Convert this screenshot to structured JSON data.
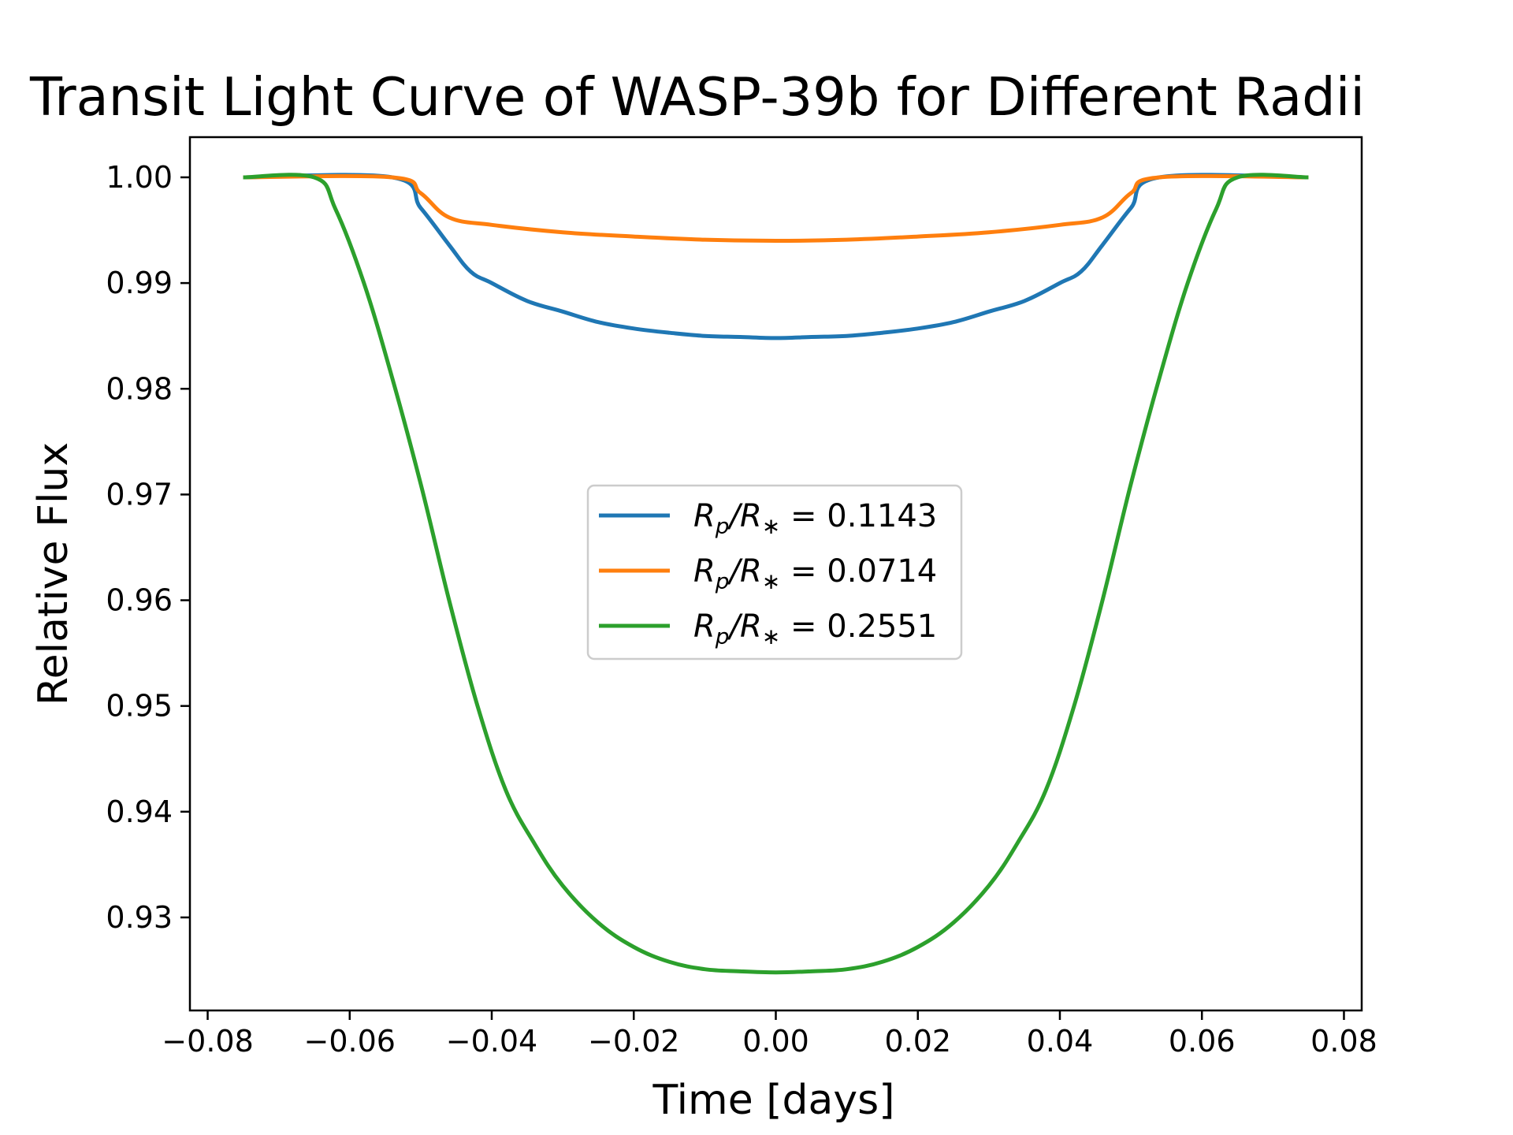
{
  "chart_data": {
    "type": "line",
    "title": "Transit Light Curve of WASP-39b for Different Radii",
    "xlabel": "Time [days]",
    "ylabel": "Relative Flux",
    "xlim": [
      -0.0825,
      0.0825
    ],
    "ylim": [
      0.9212,
      1.0038
    ],
    "xticks": [
      -0.08,
      -0.06,
      -0.04,
      -0.02,
      0.0,
      0.02,
      0.04,
      0.06,
      0.08
    ],
    "xtick_labels": [
      "−0.08",
      "−0.06",
      "−0.04",
      "−0.02",
      "0.00",
      "0.02",
      "0.04",
      "0.06",
      "0.08"
    ],
    "yticks": [
      0.93,
      0.94,
      0.95,
      0.96,
      0.97,
      0.98,
      0.99,
      1.0
    ],
    "ytick_labels": [
      "0.93",
      "0.94",
      "0.95",
      "0.96",
      "0.97",
      "0.98",
      "0.99",
      "1.00"
    ],
    "grid": false,
    "legend_position": "center",
    "series": [
      {
        "name": "R_p/R_* = 0.1143",
        "ratio_value": "0.1143",
        "color": "#1f77b4",
        "x": [
          -0.075,
          -0.054,
          -0.05,
          -0.046,
          -0.043,
          -0.04,
          -0.035,
          -0.03,
          -0.025,
          -0.02,
          -0.015,
          -0.01,
          -0.005,
          0.0,
          0.005,
          0.01,
          0.015,
          0.02,
          0.025,
          0.03,
          0.035,
          0.04,
          0.043,
          0.046,
          0.05,
          0.054,
          0.075
        ],
        "y": [
          1.0,
          1.0,
          0.9971,
          0.9936,
          0.9911,
          0.99,
          0.9883,
          0.9873,
          0.9863,
          0.9857,
          0.9853,
          0.985,
          0.9849,
          0.9848,
          0.9849,
          0.985,
          0.9853,
          0.9857,
          0.9863,
          0.9873,
          0.9883,
          0.99,
          0.9911,
          0.9936,
          0.9971,
          1.0,
          1.0
        ]
      },
      {
        "name": "R_p/R_* = 0.0714",
        "ratio_value": "0.0714",
        "color": "#ff7f0e",
        "x": [
          -0.075,
          -0.054,
          -0.05,
          -0.046,
          -0.04,
          -0.03,
          -0.02,
          -0.01,
          0.0,
          0.01,
          0.02,
          0.03,
          0.04,
          0.046,
          0.05,
          0.054,
          0.075
        ],
        "y": [
          1.0,
          1.0,
          0.9985,
          0.9962,
          0.9955,
          0.9948,
          0.9944,
          0.9941,
          0.994,
          0.9941,
          0.9944,
          0.9948,
          0.9955,
          0.9962,
          0.9985,
          1.0,
          1.0
        ]
      },
      {
        "name": "R_p/R_* = 0.2551",
        "ratio_value": "0.2551",
        "color": "#2ca02c",
        "x": [
          -0.075,
          -0.065,
          -0.062,
          -0.058,
          -0.054,
          -0.05,
          -0.046,
          -0.042,
          -0.038,
          -0.034,
          -0.03,
          -0.025,
          -0.02,
          -0.015,
          -0.01,
          -0.005,
          0.0,
          0.005,
          0.01,
          0.015,
          0.02,
          0.025,
          0.03,
          0.034,
          0.038,
          0.042,
          0.046,
          0.05,
          0.054,
          0.058,
          0.062,
          0.065,
          0.075
        ],
        "y": [
          1.0,
          1.0,
          0.997,
          0.99,
          0.981,
          0.971,
          0.96,
          0.95,
          0.942,
          0.937,
          0.933,
          0.9295,
          0.9272,
          0.9258,
          0.9251,
          0.9249,
          0.9248,
          0.9249,
          0.9251,
          0.9258,
          0.9272,
          0.9295,
          0.933,
          0.937,
          0.942,
          0.95,
          0.96,
          0.971,
          0.981,
          0.99,
          0.997,
          1.0,
          1.0
        ]
      }
    ]
  },
  "legend": {
    "label_prefix_r": "R",
    "label_sub_p": "p",
    "label_slash": "/R",
    "label_sub_star": "∗",
    "label_equals": " = "
  }
}
